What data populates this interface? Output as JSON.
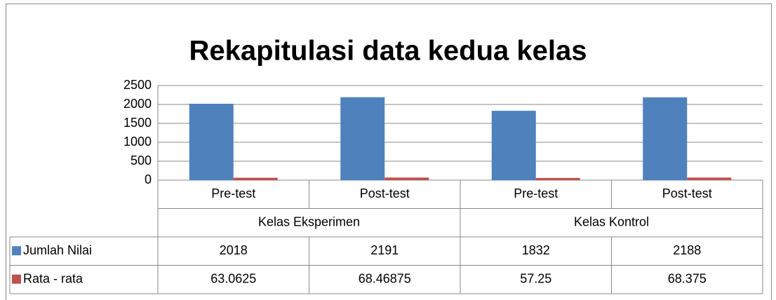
{
  "chart_data": {
    "type": "bar",
    "title": "Rekapitulasi data kedua kelas",
    "groups": [
      {
        "label": "Kelas Eksperimen",
        "categories": [
          "Pre-test",
          "Post-test"
        ]
      },
      {
        "label": "Kelas Kontrol",
        "categories": [
          "Pre-test",
          "Post-test"
        ]
      }
    ],
    "series": [
      {
        "name": "Jumlah Nilai",
        "color": "#4f81bd",
        "values": [
          2018,
          2191,
          1832,
          2188
        ]
      },
      {
        "name": "Rata - rata",
        "color": "#c0504d",
        "values": [
          63.0625,
          68.46875,
          57.25,
          68.375
        ]
      }
    ],
    "ylim": [
      0,
      2500
    ],
    "yticks": [
      0,
      500,
      1000,
      1500,
      2000,
      2500
    ],
    "grid": true,
    "data_table": true
  }
}
